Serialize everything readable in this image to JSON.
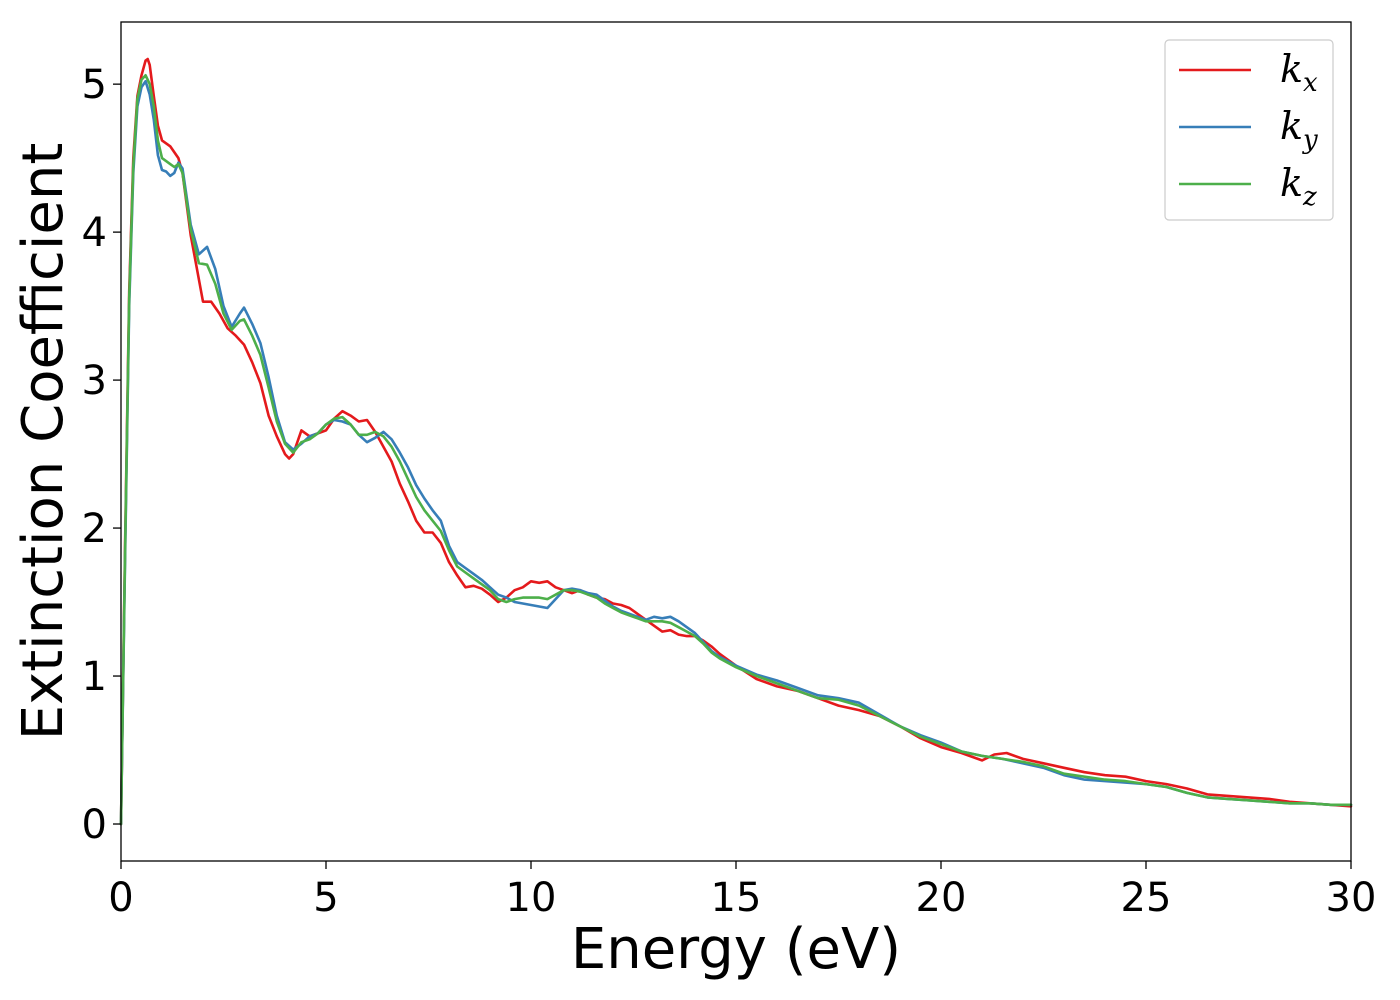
{
  "chart_data": {
    "type": "line",
    "xlabel": "Energy (eV)",
    "ylabel": "Extinction Coefficient",
    "xlim": [
      0,
      30
    ],
    "ylim": [
      -0.25,
      5.42
    ],
    "xticks": [
      0,
      5,
      10,
      15,
      20,
      25,
      30
    ],
    "yticks": [
      0,
      1,
      2,
      3,
      4,
      5
    ],
    "grid": false,
    "legend_position": "top-right",
    "series": [
      {
        "name": "k_x",
        "legend_base": "k",
        "legend_sub": "x",
        "color": "#e41a1c",
        "x": [
          0,
          0.1,
          0.2,
          0.3,
          0.4,
          0.5,
          0.6,
          0.65,
          0.7,
          0.8,
          0.9,
          1.0,
          1.2,
          1.4,
          1.5,
          1.7,
          2.0,
          2.2,
          2.4,
          2.6,
          2.8,
          3.0,
          3.2,
          3.4,
          3.6,
          3.8,
          4.0,
          4.1,
          4.2,
          4.4,
          4.6,
          4.8,
          5.0,
          5.2,
          5.4,
          5.6,
          5.8,
          6.0,
          6.2,
          6.4,
          6.6,
          6.8,
          7.0,
          7.2,
          7.4,
          7.6,
          7.8,
          8.0,
          8.2,
          8.4,
          8.6,
          8.8,
          9.0,
          9.2,
          9.4,
          9.6,
          9.8,
          10.0,
          10.2,
          10.4,
          10.6,
          10.8,
          11.0,
          11.2,
          11.4,
          11.6,
          11.8,
          12.0,
          12.2,
          12.4,
          12.6,
          12.8,
          13.0,
          13.2,
          13.4,
          13.6,
          13.8,
          14.0,
          14.2,
          14.4,
          14.6,
          15.0,
          15.5,
          16.0,
          16.5,
          17.0,
          17.5,
          18.0,
          18.5,
          19.0,
          19.5,
          20.0,
          20.5,
          21.0,
          21.3,
          21.6,
          22.0,
          22.5,
          23.0,
          23.5,
          24.0,
          24.5,
          25.0,
          25.5,
          26.0,
          26.5,
          27.0,
          27.5,
          28.0,
          28.5,
          29.0,
          29.5,
          30.0
        ],
        "y": [
          0,
          1.9,
          3.6,
          4.5,
          4.92,
          5.06,
          5.16,
          5.17,
          5.13,
          4.92,
          4.72,
          4.62,
          4.58,
          4.5,
          4.4,
          3.98,
          3.53,
          3.53,
          3.45,
          3.35,
          3.3,
          3.24,
          3.12,
          2.98,
          2.76,
          2.62,
          2.5,
          2.47,
          2.5,
          2.66,
          2.62,
          2.64,
          2.66,
          2.74,
          2.79,
          2.76,
          2.72,
          2.73,
          2.65,
          2.55,
          2.45,
          2.3,
          2.18,
          2.05,
          1.97,
          1.97,
          1.9,
          1.77,
          1.68,
          1.6,
          1.61,
          1.59,
          1.55,
          1.5,
          1.53,
          1.58,
          1.6,
          1.64,
          1.63,
          1.64,
          1.6,
          1.58,
          1.56,
          1.58,
          1.55,
          1.53,
          1.52,
          1.49,
          1.48,
          1.46,
          1.42,
          1.38,
          1.34,
          1.3,
          1.31,
          1.28,
          1.27,
          1.27,
          1.24,
          1.2,
          1.15,
          1.07,
          0.98,
          0.93,
          0.9,
          0.85,
          0.8,
          0.77,
          0.73,
          0.66,
          0.58,
          0.52,
          0.48,
          0.43,
          0.47,
          0.48,
          0.44,
          0.41,
          0.38,
          0.35,
          0.33,
          0.32,
          0.29,
          0.27,
          0.24,
          0.2,
          0.19,
          0.18,
          0.17,
          0.15,
          0.14,
          0.13,
          0.12
        ]
      },
      {
        "name": "k_y",
        "legend_base": "k",
        "legend_sub": "y",
        "color": "#377eb8",
        "x": [
          0,
          0.1,
          0.2,
          0.3,
          0.4,
          0.5,
          0.6,
          0.7,
          0.8,
          0.9,
          1.0,
          1.1,
          1.2,
          1.3,
          1.4,
          1.5,
          1.7,
          1.9,
          2.1,
          2.3,
          2.5,
          2.7,
          2.9,
          3.0,
          3.2,
          3.4,
          3.6,
          3.8,
          4.0,
          4.2,
          4.4,
          4.6,
          4.8,
          5.0,
          5.2,
          5.4,
          5.6,
          5.8,
          6.0,
          6.2,
          6.4,
          6.6,
          6.8,
          7.0,
          7.2,
          7.4,
          7.6,
          7.8,
          8.0,
          8.2,
          8.4,
          8.6,
          8.8,
          9.0,
          9.2,
          9.4,
          9.6,
          9.8,
          10.0,
          10.2,
          10.4,
          10.6,
          10.8,
          11.0,
          11.2,
          11.4,
          11.6,
          11.8,
          12.0,
          12.2,
          12.4,
          12.6,
          12.8,
          13.0,
          13.2,
          13.4,
          13.6,
          13.8,
          14.0,
          14.2,
          14.4,
          14.6,
          15.0,
          15.5,
          16.0,
          16.5,
          17.0,
          17.5,
          18.0,
          18.5,
          19.0,
          19.5,
          20.0,
          20.5,
          21.0,
          21.5,
          22.0,
          22.5,
          23.0,
          23.5,
          24.0,
          24.5,
          25.0,
          25.5,
          26.0,
          26.5,
          27.0,
          27.5,
          28.0,
          28.5,
          29.0,
          29.5,
          30.0
        ],
        "y": [
          0,
          1.8,
          3.5,
          4.4,
          4.85,
          4.98,
          5.02,
          4.93,
          4.76,
          4.52,
          4.42,
          4.41,
          4.38,
          4.4,
          4.47,
          4.43,
          4.05,
          3.85,
          3.9,
          3.75,
          3.5,
          3.36,
          3.45,
          3.49,
          3.38,
          3.25,
          3.02,
          2.76,
          2.58,
          2.53,
          2.57,
          2.62,
          2.64,
          2.7,
          2.73,
          2.72,
          2.7,
          2.63,
          2.58,
          2.61,
          2.65,
          2.6,
          2.51,
          2.41,
          2.29,
          2.2,
          2.12,
          2.05,
          1.88,
          1.77,
          1.73,
          1.69,
          1.65,
          1.6,
          1.55,
          1.53,
          1.5,
          1.49,
          1.48,
          1.47,
          1.46,
          1.52,
          1.58,
          1.59,
          1.58,
          1.56,
          1.55,
          1.51,
          1.47,
          1.44,
          1.42,
          1.4,
          1.38,
          1.4,
          1.39,
          1.4,
          1.37,
          1.33,
          1.29,
          1.23,
          1.17,
          1.13,
          1.07,
          1.01,
          0.97,
          0.92,
          0.87,
          0.85,
          0.82,
          0.74,
          0.66,
          0.6,
          0.55,
          0.49,
          0.46,
          0.44,
          0.41,
          0.38,
          0.33,
          0.3,
          0.29,
          0.28,
          0.27,
          0.25,
          0.21,
          0.18,
          0.17,
          0.16,
          0.15,
          0.14,
          0.14,
          0.13,
          0.13
        ]
      },
      {
        "name": "k_z",
        "legend_base": "k",
        "legend_sub": "z",
        "color": "#4daf4a",
        "x": [
          0,
          0.1,
          0.2,
          0.3,
          0.4,
          0.5,
          0.6,
          0.7,
          0.8,
          0.9,
          1.0,
          1.1,
          1.2,
          1.3,
          1.4,
          1.5,
          1.7,
          1.9,
          2.1,
          2.3,
          2.5,
          2.7,
          2.9,
          3.0,
          3.2,
          3.4,
          3.6,
          3.8,
          4.0,
          4.2,
          4.4,
          4.6,
          4.8,
          5.0,
          5.2,
          5.4,
          5.6,
          5.8,
          6.0,
          6.2,
          6.4,
          6.6,
          6.8,
          7.0,
          7.2,
          7.4,
          7.6,
          7.8,
          8.0,
          8.2,
          8.4,
          8.6,
          8.8,
          9.0,
          9.2,
          9.4,
          9.6,
          9.8,
          10.0,
          10.2,
          10.4,
          10.6,
          10.8,
          11.0,
          11.2,
          11.4,
          11.6,
          11.8,
          12.0,
          12.2,
          12.4,
          12.6,
          12.8,
          13.0,
          13.2,
          13.4,
          13.6,
          13.8,
          14.0,
          14.2,
          14.4,
          14.6,
          15.0,
          15.5,
          16.0,
          16.5,
          17.0,
          17.5,
          18.0,
          18.5,
          19.0,
          19.5,
          20.0,
          20.5,
          21.0,
          21.5,
          22.0,
          22.5,
          23.0,
          23.5,
          24.0,
          24.5,
          25.0,
          25.5,
          26.0,
          26.5,
          27.0,
          27.5,
          28.0,
          28.5,
          29.0,
          29.5,
          30.0
        ],
        "y": [
          0,
          1.85,
          3.55,
          4.45,
          4.9,
          5.03,
          5.06,
          5.0,
          4.85,
          4.62,
          4.5,
          4.48,
          4.46,
          4.44,
          4.46,
          4.4,
          4.02,
          3.79,
          3.78,
          3.65,
          3.45,
          3.34,
          3.4,
          3.41,
          3.3,
          3.17,
          2.95,
          2.72,
          2.57,
          2.51,
          2.58,
          2.6,
          2.64,
          2.7,
          2.74,
          2.75,
          2.7,
          2.63,
          2.63,
          2.65,
          2.62,
          2.55,
          2.45,
          2.33,
          2.21,
          2.12,
          2.05,
          1.98,
          1.85,
          1.74,
          1.7,
          1.66,
          1.62,
          1.58,
          1.52,
          1.5,
          1.52,
          1.53,
          1.53,
          1.53,
          1.52,
          1.55,
          1.58,
          1.58,
          1.57,
          1.55,
          1.53,
          1.49,
          1.46,
          1.43,
          1.41,
          1.39,
          1.37,
          1.37,
          1.37,
          1.36,
          1.33,
          1.3,
          1.27,
          1.22,
          1.16,
          1.12,
          1.06,
          1.0,
          0.95,
          0.9,
          0.85,
          0.84,
          0.8,
          0.73,
          0.66,
          0.59,
          0.54,
          0.49,
          0.46,
          0.44,
          0.42,
          0.39,
          0.34,
          0.32,
          0.3,
          0.29,
          0.27,
          0.25,
          0.21,
          0.18,
          0.17,
          0.16,
          0.15,
          0.14,
          0.14,
          0.13,
          0.13
        ]
      }
    ]
  }
}
